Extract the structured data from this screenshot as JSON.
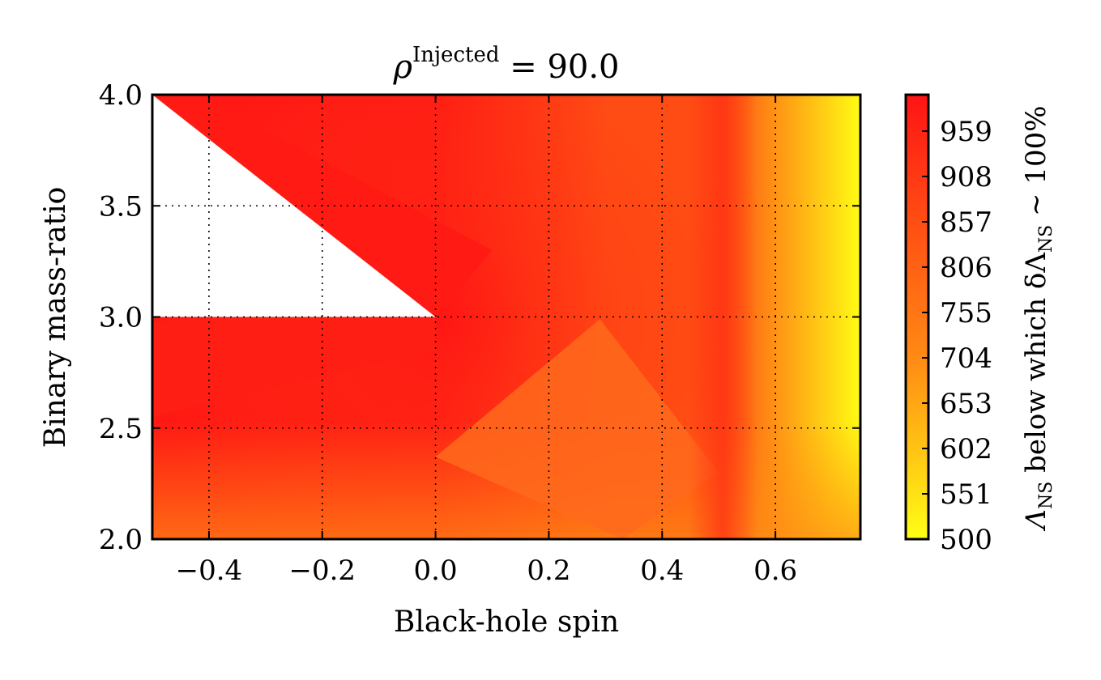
{
  "chart_data": {
    "type": "heatmap",
    "title": {
      "base": "ρ",
      "superscript": "Injected",
      "rest": " = 90.0"
    },
    "xlabel": "Black-hole spin",
    "ylabel": "Binary mass-ratio",
    "xlim": [
      -0.5,
      0.75
    ],
    "ylim": [
      2.0,
      4.0
    ],
    "xticks": [
      {
        "value": -0.4,
        "label": "−0.4"
      },
      {
        "value": -0.2,
        "label": "−0.2"
      },
      {
        "value": 0.0,
        "label": "0.0"
      },
      {
        "value": 0.2,
        "label": "0.2"
      },
      {
        "value": 0.4,
        "label": "0.4"
      },
      {
        "value": 0.6,
        "label": "0.6"
      }
    ],
    "yticks": [
      {
        "value": 2.0,
        "label": "2.0"
      },
      {
        "value": 2.5,
        "label": "2.5"
      },
      {
        "value": 3.0,
        "label": "3.0"
      },
      {
        "value": 3.5,
        "label": "3.5"
      },
      {
        "value": 4.0,
        "label": "4.0"
      }
    ],
    "grid": true,
    "colorbar": {
      "min": 500,
      "max": 1000,
      "ticks": [
        500,
        551,
        602,
        653,
        704,
        755,
        806,
        857,
        908,
        959
      ],
      "label": {
        "part1": "Λ",
        "part1_sub": "NS",
        "part2": " below which δΛ",
        "part2_sub": "NS",
        "part3": " ∼ 100%"
      },
      "colors": [
        "#ffff14",
        "#ffc414",
        "#ff8c14",
        "#ff6414",
        "#ff3c14",
        "#ff1414"
      ]
    },
    "data_points": [
      {
        "x": -0.5,
        "y": 2.0,
        "value": 900
      },
      {
        "x": -0.5,
        "y": 3.0,
        "value": 990
      },
      {
        "x": -0.5,
        "y": 4.0,
        "value": 995
      },
      {
        "x": 0.0,
        "y": 2.0,
        "value": 820
      },
      {
        "x": 0.0,
        "y": 3.0,
        "value": 985
      },
      {
        "x": 0.0,
        "y": 4.0,
        "value": 860
      },
      {
        "x": 0.3,
        "y": 2.0,
        "value": 860
      },
      {
        "x": 0.3,
        "y": 3.0,
        "value": 860
      },
      {
        "x": 0.3,
        "y": 4.0,
        "value": 860
      },
      {
        "x": 0.5,
        "y": 2.0,
        "value": 930
      },
      {
        "x": 0.5,
        "y": 3.0,
        "value": 860
      },
      {
        "x": 0.5,
        "y": 4.0,
        "value": 860
      },
      {
        "x": 0.75,
        "y": 2.0,
        "value": 500
      },
      {
        "x": 0.75,
        "y": 3.0,
        "value": 505
      },
      {
        "x": 0.75,
        "y": 4.0,
        "value": 505
      }
    ],
    "missing_region": {
      "polygon": [
        [
          -0.5,
          3.0
        ],
        [
          0.0,
          3.0
        ],
        [
          -0.5,
          4.0
        ]
      ]
    }
  }
}
